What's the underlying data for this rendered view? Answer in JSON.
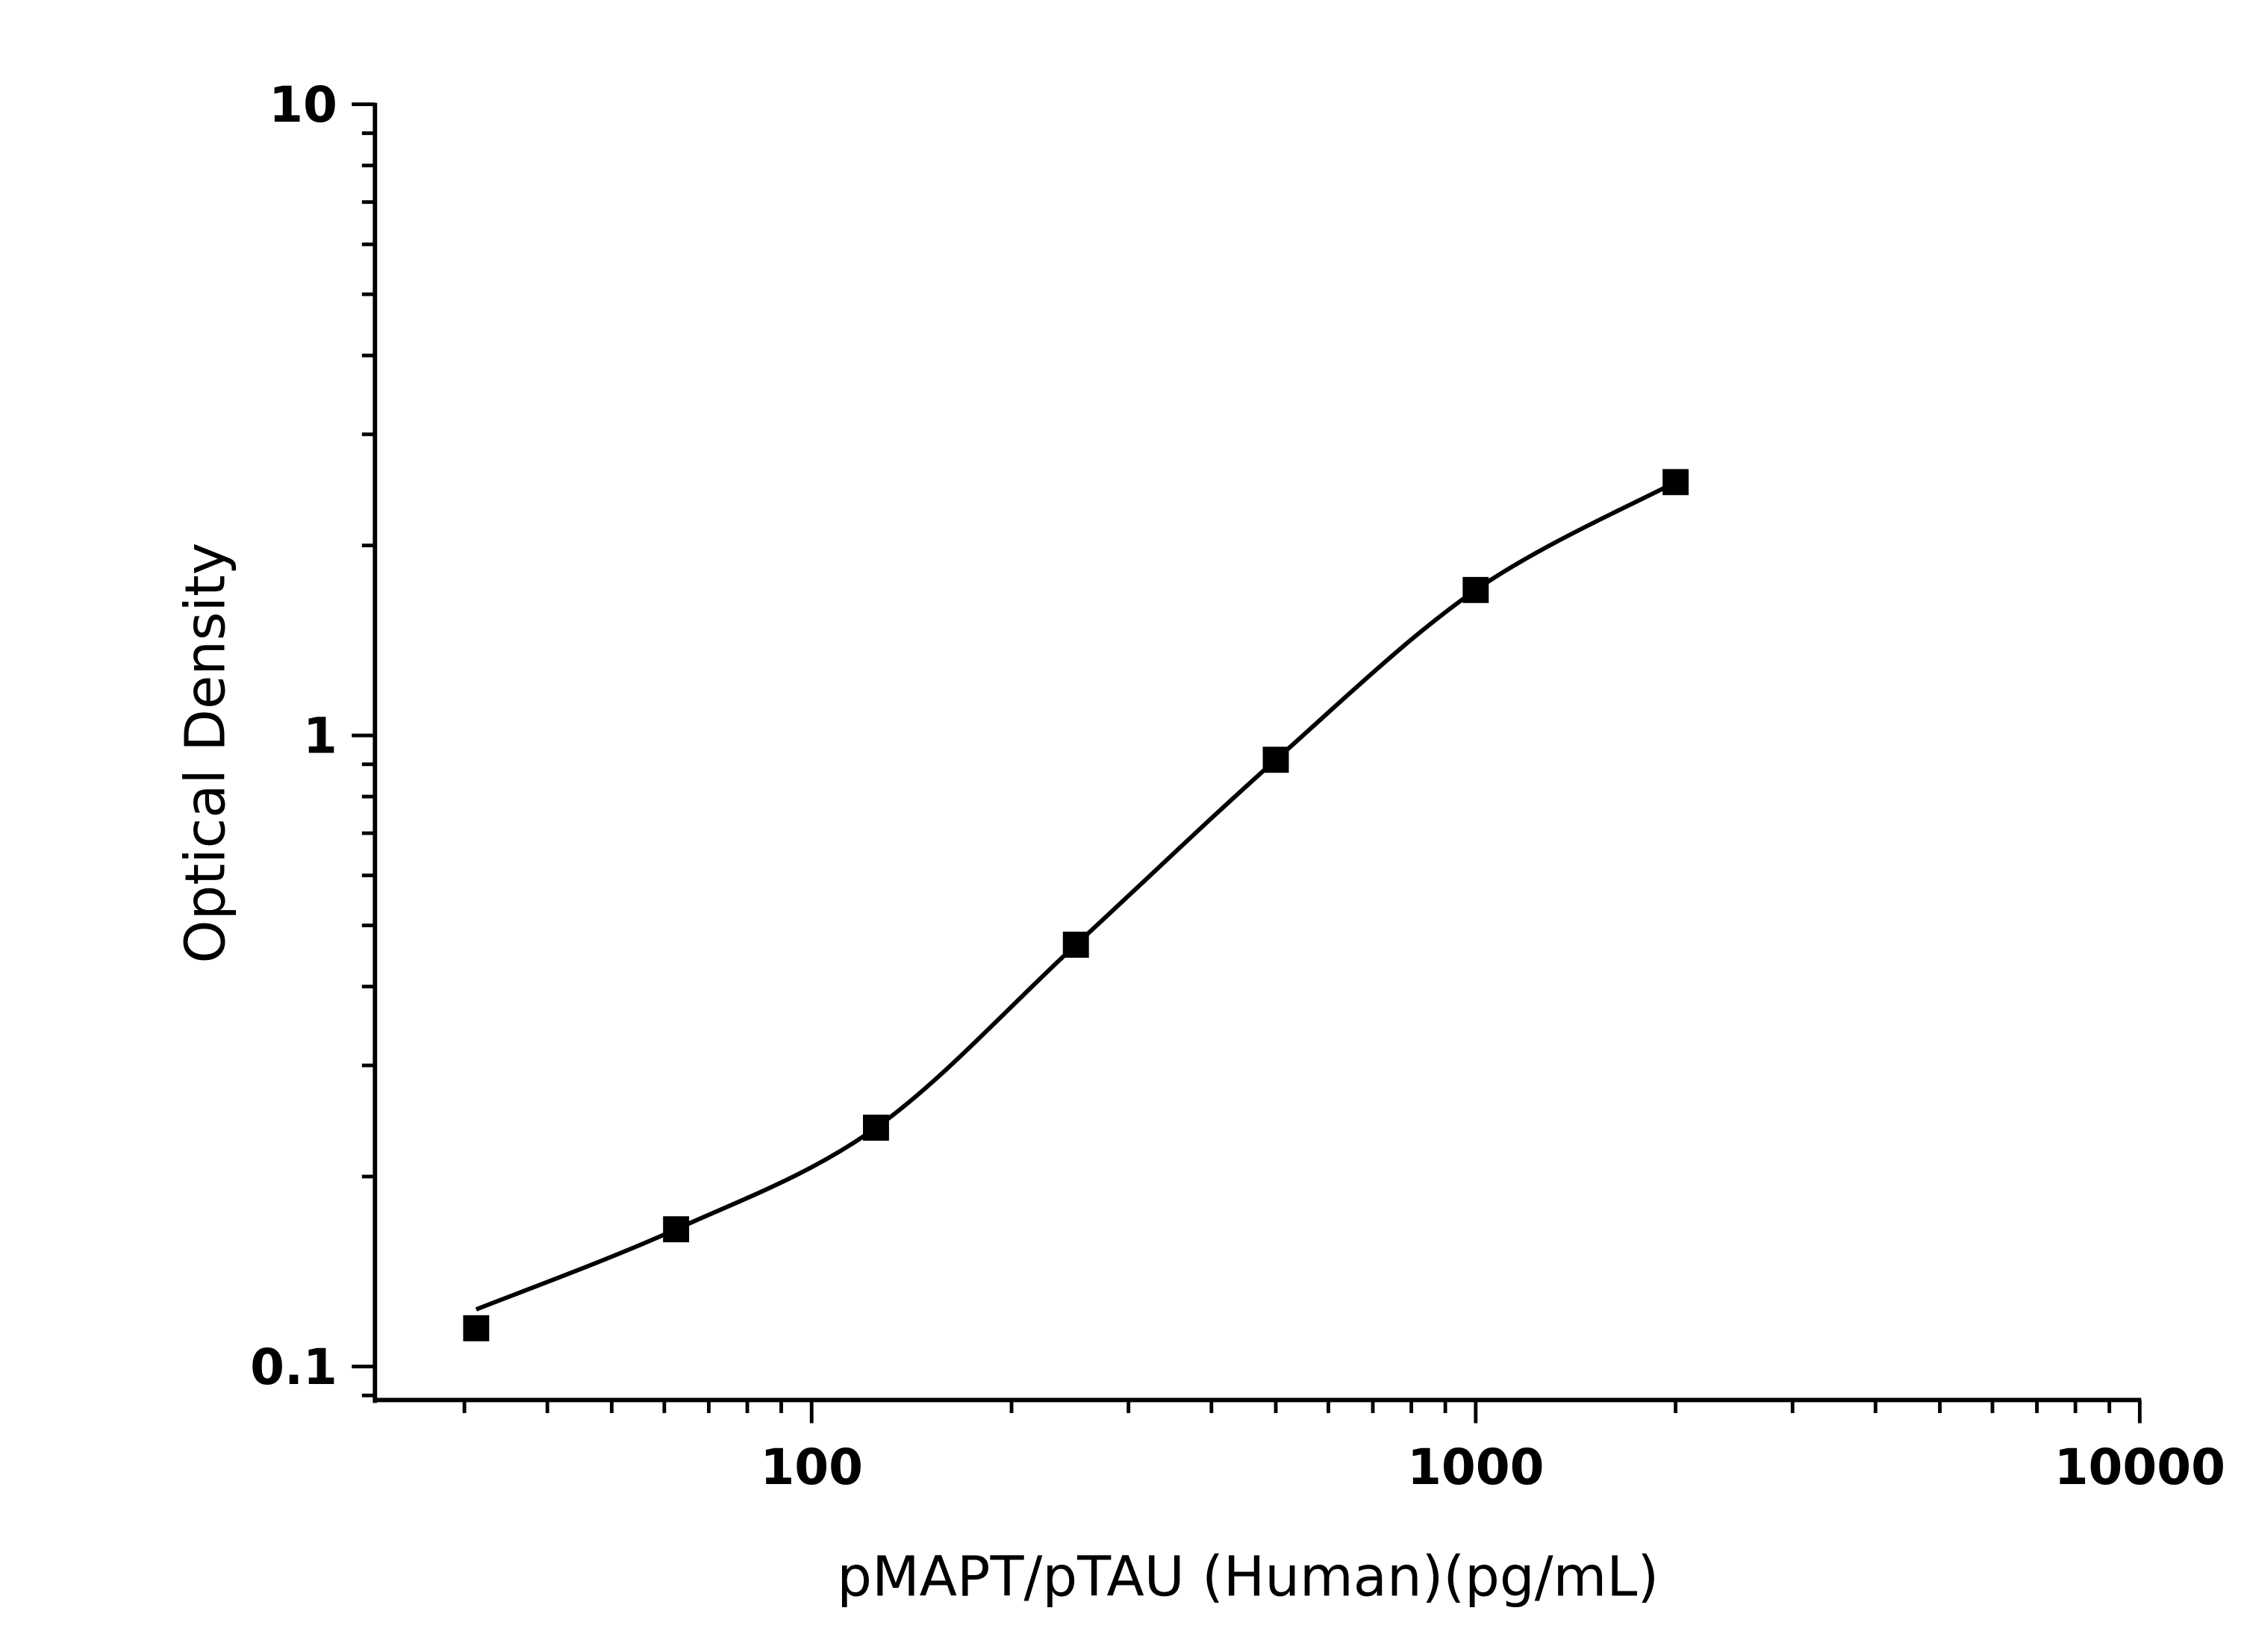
{
  "chart_data": {
    "type": "scatter",
    "title": "",
    "xlabel": "pMAPT/pTAU (Human)(pg/mL)",
    "ylabel": "Optical Density",
    "xscale": "log",
    "yscale": "log",
    "xlim": [
      22,
      10000
    ],
    "ylim": [
      0.0885,
      10
    ],
    "x_ticks": [
      100,
      1000,
      10000
    ],
    "x_tick_labels": [
      "100",
      "1000",
      "10000"
    ],
    "y_ticks": [
      0.1,
      1,
      10
    ],
    "y_tick_labels": [
      "0.1",
      "1",
      "10"
    ],
    "grid": false,
    "legend": "none",
    "marker": "square",
    "fit_curve": "4-parameter logistic",
    "color": "#000000",
    "x": [
      31.25,
      62.5,
      125,
      250,
      500,
      1000,
      2000
    ],
    "y": [
      0.115,
      0.165,
      0.239,
      0.466,
      0.915,
      1.7,
      2.52
    ]
  }
}
